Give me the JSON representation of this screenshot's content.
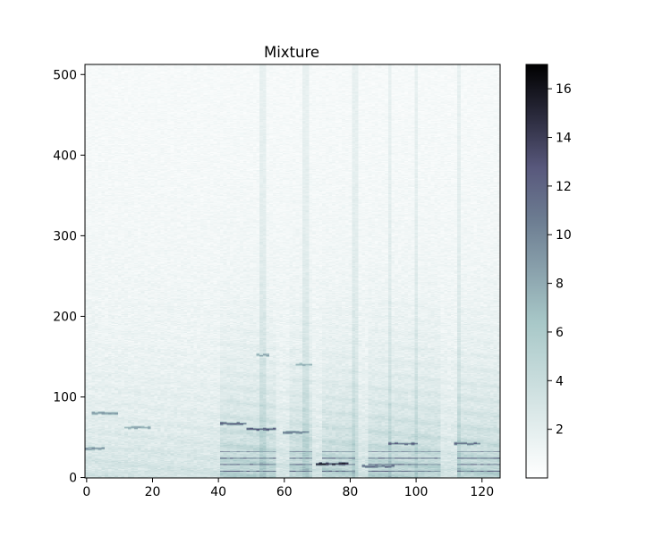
{
  "chart_data": {
    "type": "heatmap",
    "title": "Mixture",
    "xlabel": "",
    "ylabel": "",
    "xlim": [
      -0.5,
      125.5
    ],
    "ylim": [
      -0.5,
      512.5
    ],
    "x_ticks": [
      0,
      20,
      40,
      60,
      80,
      100,
      120
    ],
    "y_ticks": [
      0,
      100,
      200,
      300,
      400,
      500
    ],
    "colormap": "bone_r",
    "colorbar": {
      "range": [
        0,
        17
      ],
      "ticks": [
        2,
        4,
        6,
        8,
        10,
        12,
        14,
        16
      ]
    },
    "grid": false,
    "description_of_structure": {
      "n_frames": 126,
      "n_bins": 513,
      "background_level": 0.5,
      "active_columns": [
        [
          41,
          58
        ],
        [
          62,
          69
        ],
        [
          72,
          82
        ],
        [
          86,
          108
        ],
        [
          113,
          126
        ]
      ],
      "vertical_streak_columns": [
        53,
        54,
        66,
        67,
        81,
        82,
        92,
        100,
        113
      ],
      "strong_harmonics": [
        {
          "x": [
            41,
            49
          ],
          "y": 67,
          "value": 13
        },
        {
          "x": [
            49,
            58
          ],
          "y": 60,
          "value": 13
        },
        {
          "x": [
            60,
            68
          ],
          "y": 56,
          "value": 11
        },
        {
          "x": [
            70,
            80
          ],
          "y": 17,
          "value": 16
        },
        {
          "x": [
            84,
            94
          ],
          "y": 14,
          "value": 12
        },
        {
          "x": [
            92,
            101
          ],
          "y": 42,
          "value": 13
        },
        {
          "x": [
            112,
            120
          ],
          "y": 42,
          "value": 12
        },
        {
          "x": [
            52,
            56
          ],
          "y": 152,
          "value": 9
        },
        {
          "x": [
            64,
            69
          ],
          "y": 140,
          "value": 8
        },
        {
          "x": [
            0,
            6
          ],
          "y": 36,
          "value": 10
        },
        {
          "x": [
            2,
            10
          ],
          "y": 80,
          "value": 9
        },
        {
          "x": [
            12,
            20
          ],
          "y": 62,
          "value": 9
        }
      ]
    }
  }
}
